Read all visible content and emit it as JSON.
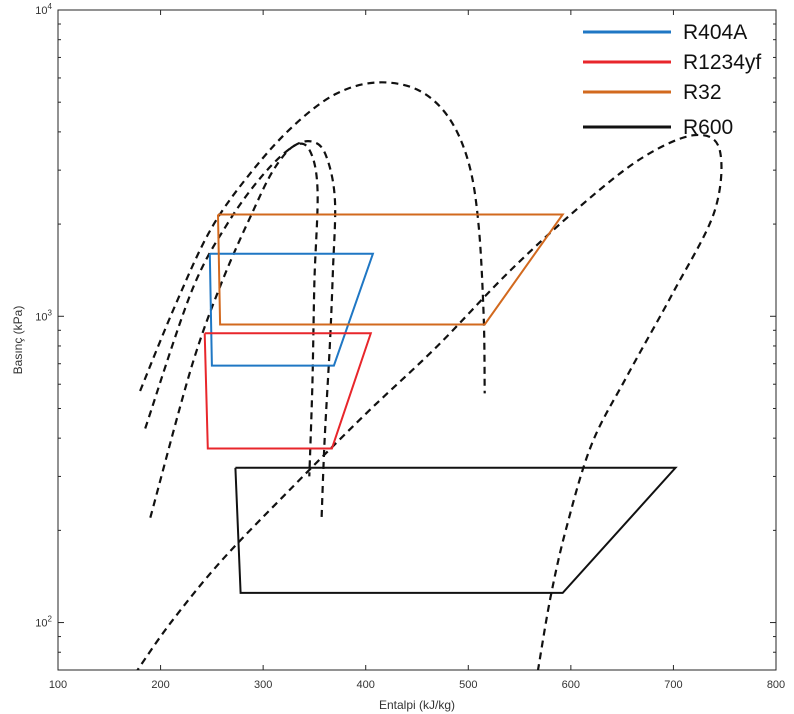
{
  "chart_data": {
    "type": "line",
    "title": "",
    "xlabel": "Entalpi (kJ/kg)",
    "ylabel": "Basınç (kPa)",
    "xlim": [
      100,
      800
    ],
    "ylim": [
      70,
      10000
    ],
    "yscale": "log",
    "grid": false,
    "legend_position": "top-right",
    "x_ticks": [
      100,
      200,
      300,
      400,
      500,
      600,
      700,
      800
    ],
    "x_tick_labels": [
      "100",
      "200",
      "300",
      "400",
      "500",
      "600",
      "700",
      "800"
    ],
    "y_ticks": [
      100,
      1000,
      10000
    ],
    "y_tick_labels": [
      {
        "base": "10",
        "exp": "2"
      },
      {
        "base": "10",
        "exp": "3"
      },
      {
        "base": "10",
        "exp": "4"
      }
    ],
    "series": [
      {
        "name": "R404A",
        "color": "#1f77c4",
        "style": "solid",
        "x": [
          248,
          407,
          369,
          250,
          248
        ],
        "y": [
          1600,
          1600,
          690,
          690,
          1600
        ]
      },
      {
        "name": "R1234yf",
        "color": "#e8262b",
        "style": "solid",
        "x": [
          243,
          405,
          367,
          246,
          243
        ],
        "y": [
          880,
          880,
          370,
          370,
          880
        ]
      },
      {
        "name": "R32",
        "color": "#d2691e",
        "style": "solid",
        "x": [
          256,
          592,
          516,
          258,
          256
        ],
        "y": [
          2150,
          2150,
          940,
          940,
          2150
        ]
      },
      {
        "name": "R600",
        "color": "#111111",
        "style": "solid",
        "x": [
          273,
          702,
          592,
          278,
          273
        ],
        "y": [
          320,
          320,
          125,
          125,
          320
        ]
      }
    ],
    "saturation_domes": [
      {
        "color": "#111111",
        "style": "dashed",
        "x": [
          185,
          230,
          265,
          300,
          330,
          350,
          362,
          370,
          368,
          365,
          360,
          357
        ],
        "y": [
          430,
          1200,
          2000,
          2900,
          3600,
          3700,
          3300,
          2400,
          1400,
          800,
          400,
          220
        ]
      },
      {
        "color": "#111111",
        "style": "dashed",
        "x": [
          190,
          230,
          260,
          290,
          310,
          330,
          345,
          353,
          350,
          348,
          345
        ],
        "y": [
          220,
          680,
          1300,
          2200,
          3000,
          3600,
          3500,
          2600,
          1300,
          600,
          300
        ]
      },
      {
        "color": "#111111",
        "style": "dashed",
        "x": [
          180,
          215,
          250,
          290,
          330,
          370,
          410,
          450,
          480,
          500,
          510,
          515,
          516
        ],
        "y": [
          570,
          1100,
          1950,
          3000,
          4200,
          5300,
          5800,
          5500,
          4500,
          3200,
          2000,
          1000,
          560
        ]
      },
      {
        "color": "#111111",
        "style": "dashed",
        "x": [
          175,
          210,
          260,
          330,
          400,
          470,
          540,
          610,
          670,
          720,
          745,
          740,
          700,
          655,
          620,
          595,
          580,
          568
        ],
        "y": [
          68,
          100,
          160,
          280,
          480,
          800,
          1400,
          2300,
          3300,
          3900,
          3500,
          2200,
          1200,
          640,
          380,
          200,
          120,
          70
        ]
      }
    ]
  }
}
